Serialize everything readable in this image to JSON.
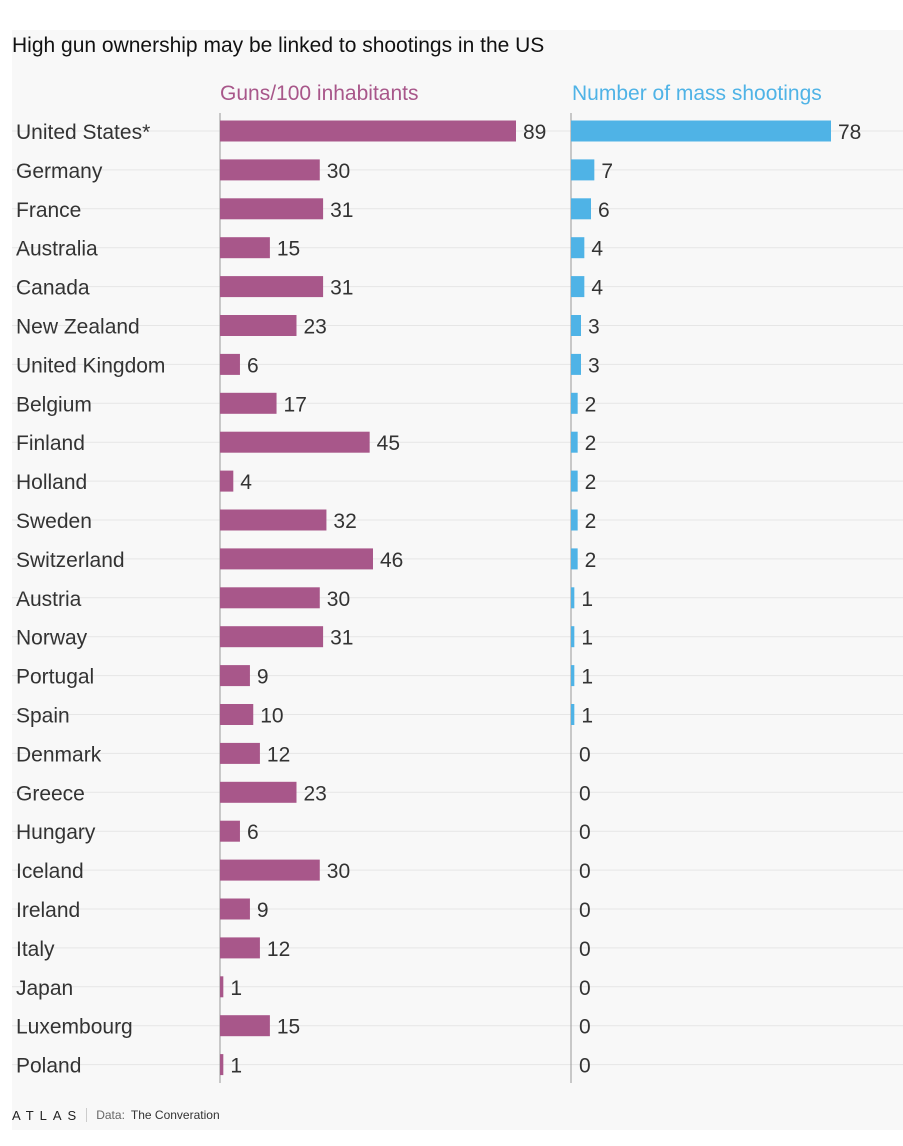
{
  "title": "High gun ownership may be linked to shootings in the US",
  "footer": {
    "logo": "ATLAS",
    "source_label": "Data:",
    "source_value": "The Converation"
  },
  "colors": {
    "guns": "#a8578a",
    "shootings": "#4fb3e6",
    "label_text": "#333333",
    "grid": "#e6e6e6",
    "axis": "#999999"
  },
  "chart_data": {
    "type": "bar",
    "orientation": "horizontal",
    "categories": [
      "United States*",
      "Germany",
      "France",
      "Australia",
      "Canada",
      "New Zealand",
      "United Kingdom",
      "Belgium",
      "Finland",
      "Holland",
      "Sweden",
      "Switzerland",
      "Austria",
      "Norway",
      "Portugal",
      "Spain",
      "Denmark",
      "Greece",
      "Hungary",
      "Iceland",
      "Ireland",
      "Italy",
      "Japan",
      "Luxembourg",
      "Poland"
    ],
    "series": [
      {
        "name": "Guns/100 inhabitants",
        "color": "#a8578a",
        "values": [
          89,
          30,
          31,
          15,
          31,
          23,
          6,
          17,
          45,
          4,
          32,
          46,
          30,
          31,
          9,
          10,
          12,
          23,
          6,
          30,
          9,
          12,
          1,
          15,
          1
        ]
      },
      {
        "name": "Number of mass shootings",
        "color": "#4fb3e6",
        "values": [
          78,
          7,
          6,
          4,
          4,
          3,
          3,
          2,
          2,
          2,
          2,
          2,
          1,
          1,
          1,
          1,
          0,
          0,
          0,
          0,
          0,
          0,
          0,
          0,
          0
        ]
      }
    ],
    "data_labels": true,
    "grid": true
  }
}
